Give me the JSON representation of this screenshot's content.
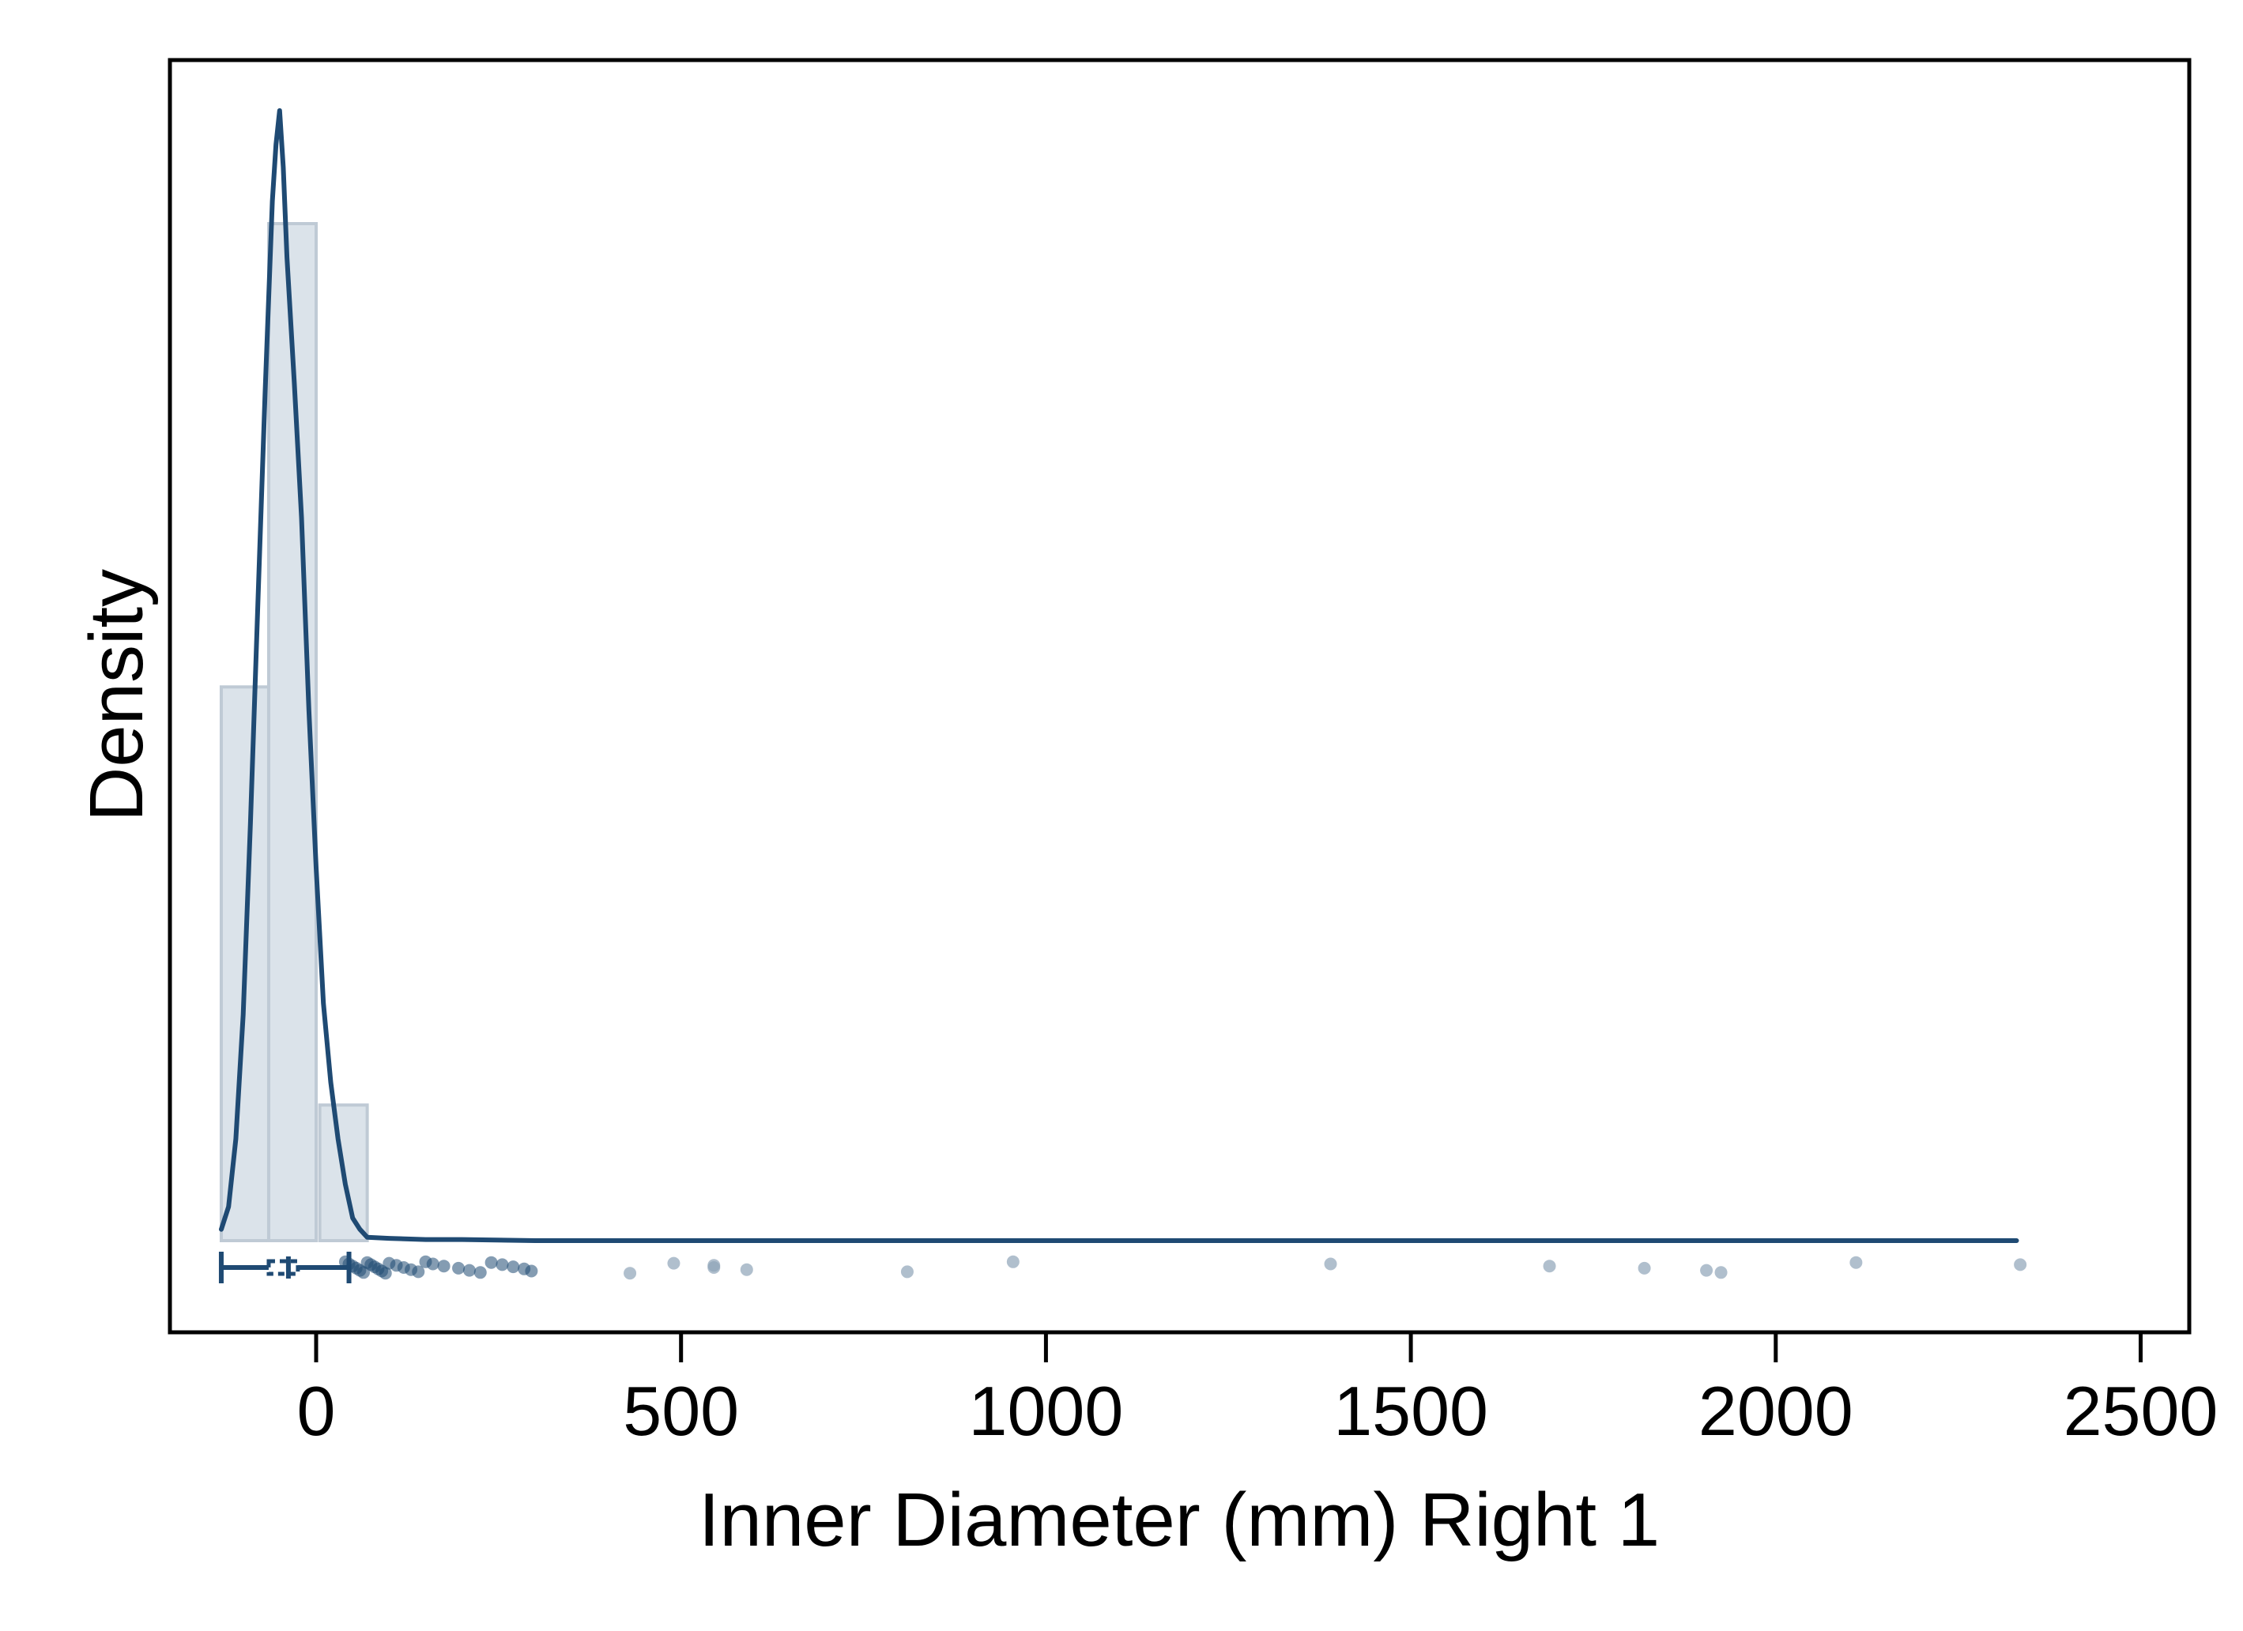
{
  "chart_data": {
    "type": "histogram-density-rug",
    "xlabel": "Inner Diameter (mm) Right 1",
    "ylabel": "Density",
    "xlim": [
      -200,
      2570
    ],
    "x_ticks": [
      0,
      500,
      1000,
      1500,
      2000,
      2500
    ],
    "y_ticks_shown": false,
    "grid": false,
    "histogram": {
      "bins": [
        {
          "x0": -130,
          "x1": -65,
          "relative_height": 0.49
        },
        {
          "x0": -65,
          "x1": 0,
          "relative_height": 0.9
        },
        {
          "x0": 5,
          "x1": 70,
          "relative_height": 0.12
        }
      ]
    },
    "density_curve": {
      "x": [
        -130,
        -120,
        -110,
        -100,
        -90,
        -80,
        -70,
        -60,
        -55,
        -50,
        -45,
        -40,
        -30,
        -20,
        -10,
        0,
        10,
        20,
        30,
        40,
        50,
        60,
        70,
        100,
        150,
        200,
        300,
        500,
        1000,
        1500,
        2000,
        2330
      ],
      "relative_density": [
        0.01,
        0.03,
        0.09,
        0.2,
        0.37,
        0.56,
        0.75,
        0.92,
        0.97,
        1.0,
        0.95,
        0.87,
        0.76,
        0.64,
        0.47,
        0.33,
        0.21,
        0.14,
        0.09,
        0.05,
        0.02,
        0.01,
        0.003,
        0.002,
        0.001,
        0.001,
        0.0,
        0.0,
        0.0,
        0.0,
        0.0,
        0.0
      ]
    },
    "boxplot": {
      "min": -130,
      "q1": -65,
      "median": -38,
      "q3": -25,
      "whisker_high": 45
    },
    "rug_points": [
      40,
      45,
      50,
      55,
      60,
      65,
      70,
      75,
      80,
      85,
      90,
      95,
      100,
      110,
      120,
      130,
      140,
      150,
      160,
      175,
      195,
      210,
      225,
      240,
      255,
      270,
      285,
      295,
      430,
      490,
      545,
      545,
      590,
      810,
      955,
      1390,
      1690,
      1820,
      1905,
      1925,
      2110,
      2335
    ],
    "colors": {
      "line": "#1f4a73",
      "bar_fill": "#dbe3ea",
      "bar_stroke": "#bfcad5",
      "rug": "#8ea4b8",
      "frame": "#000000"
    }
  }
}
